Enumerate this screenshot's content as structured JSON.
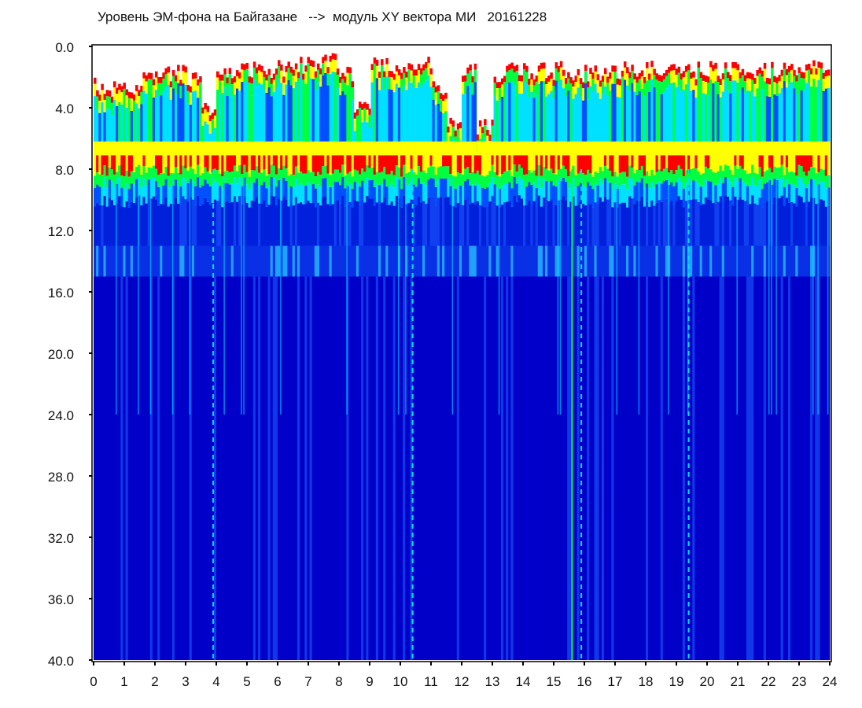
{
  "title": "Уровень ЭМ-фона на Байгазане   -->  модуль XY вектора МИ   20161228",
  "chart_data": {
    "type": "heatmap",
    "title": "Уровень ЭМ-фона на Байгазане   -->  модуль XY вектора МИ   20161228",
    "xlabel": "",
    "ylabel": "",
    "xlim": [
      0,
      24
    ],
    "ylim": [
      0,
      40
    ],
    "y_inverted": true,
    "x_ticks": [
      "0",
      "1",
      "2",
      "3",
      "4",
      "5",
      "6",
      "7",
      "8",
      "9",
      "10",
      "11",
      "12",
      "13",
      "14",
      "15",
      "16",
      "17",
      "18",
      "19",
      "20",
      "21",
      "22",
      "23",
      "24"
    ],
    "y_ticks": [
      "0.0",
      "4.0",
      "8.0",
      "12.0",
      "16.0",
      "20.0",
      "24.0",
      "28.0",
      "32.0",
      "36.0",
      "40.0"
    ],
    "colormap": [
      "#0000c8",
      "#0050ff",
      "#00e0ff",
      "#00ff40",
      "#ffff00",
      "#ff0000",
      "#ffffff"
    ],
    "upper_edge": {
      "x": [
        0,
        0.5,
        1,
        1.5,
        2,
        2.5,
        3,
        3.5,
        4,
        4.5,
        5,
        5.5,
        6,
        6.5,
        7,
        7.5,
        8,
        8.5,
        9,
        9.5,
        10,
        10.5,
        11,
        11.5,
        12,
        12.5,
        13,
        13.5,
        14,
        14.5,
        15,
        15.5,
        16,
        16.5,
        17,
        17.5,
        18,
        18.5,
        19,
        19.5,
        20,
        20.5,
        21,
        21.5,
        22,
        22.5,
        23,
        23.5,
        24
      ],
      "y": [
        2.4,
        2.5,
        2.3,
        2.0,
        1.3,
        1.5,
        2.0,
        4.0,
        1.5,
        1.3,
        1.2,
        1.3,
        1.2,
        1.0,
        1.0,
        0.8,
        1.5,
        3.5,
        1.0,
        1.0,
        1.2,
        1.0,
        2.5,
        5.0,
        1.3,
        5.0,
        1.5,
        1.3,
        1.4,
        1.4,
        1.3,
        1.6,
        1.5,
        1.4,
        1.3,
        1.3,
        1.2,
        1.2,
        1.2,
        1.3,
        1.3,
        1.3,
        1.4,
        1.4,
        1.3,
        1.4,
        1.2,
        1.3,
        1.3
      ]
    },
    "high_band": [
      6.5,
      8.5
    ],
    "secondary_band": [
      13.0,
      15.0
    ],
    "vertical_lines_x": [
      3.9,
      10.4,
      15.6,
      15.9,
      19.4
    ]
  }
}
